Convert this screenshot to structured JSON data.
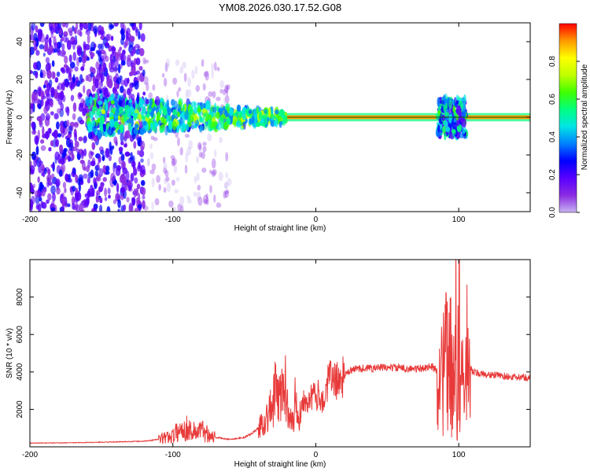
{
  "title": "YM08.2026.030.17.52.G08",
  "colors": {
    "snr_line": "#e83a3a",
    "baseline": "#006400",
    "axes": "#000000",
    "background": "#ffffff"
  },
  "chart_data": [
    {
      "type": "heatmap",
      "name": "spectrogram",
      "xlabel": "Height of straight line (km)",
      "ylabel": "Frequency (Hz)",
      "xlim": [
        -200,
        150
      ],
      "ylim": [
        -50,
        50
      ],
      "xticks": [
        -200,
        -100,
        0,
        100
      ],
      "xtick_labels": [
        "-200",
        "-100",
        "0",
        "100"
      ],
      "yticks": [
        -40,
        -20,
        0,
        20,
        40
      ],
      "ytick_labels": [
        "-40",
        "-20",
        "0",
        "20",
        "40"
      ],
      "colorbar": {
        "label": "Normalized spectral amplitude",
        "range": [
          0.0,
          1.0
        ],
        "ticks": [
          0.0,
          0.2,
          0.4,
          0.6,
          0.8
        ],
        "tick_labels": [
          "0.0",
          "0.2",
          "0.4",
          "0.6",
          "0.8"
        ],
        "colormap": [
          "#c8b4f0",
          "#8a2be2",
          "#5a00ff",
          "#0000ff",
          "#0080ff",
          "#00e5e5",
          "#00ff80",
          "#40ff00",
          "#c0ff00",
          "#ffff00",
          "#ff9900",
          "#ff0000"
        ]
      },
      "features": [
        {
          "label": "scattered noise",
          "x_range": [
            -200,
            -120
          ],
          "freq_range": [
            -50,
            50
          ],
          "amplitude": 0.15
        },
        {
          "label": "sparse faint noise",
          "x_range": [
            -120,
            -60
          ],
          "freq_range": [
            -50,
            30
          ],
          "amplitude": 0.05
        },
        {
          "label": "broadening band",
          "x_range": [
            -160,
            -20
          ],
          "freq_range": [
            -10,
            12
          ],
          "amplitude": 0.3
        },
        {
          "label": "narrow carrier line",
          "x_range": [
            -20,
            150
          ],
          "freq_range": [
            -1,
            1
          ],
          "amplitude": 0.95
        },
        {
          "label": "disturbance near 100 km",
          "x_range": [
            85,
            105
          ],
          "freq_range": [
            -10,
            10
          ],
          "amplitude": 0.35
        }
      ]
    },
    {
      "type": "line",
      "name": "snr",
      "xlabel": "Height of straight line (km)",
      "ylabel": "SNR (10 * v/v)",
      "xlim": [
        -200,
        150
      ],
      "ylim": [
        0,
        10000
      ],
      "xticks": [
        -200,
        -100,
        0,
        100
      ],
      "xtick_labels": [
        "-200",
        "-100",
        "0",
        "100"
      ],
      "yticks": [
        2000,
        4000,
        6000,
        8000
      ],
      "ytick_labels": [
        "2000",
        "4000",
        "6000",
        "8000"
      ],
      "series": [
        {
          "name": "SNR",
          "x": [
            -200,
            -180,
            -160,
            -140,
            -120,
            -110,
            -100,
            -95,
            -90,
            -85,
            -80,
            -75,
            -70,
            -60,
            -50,
            -45,
            -40,
            -35,
            -30,
            -28,
            -26,
            -24,
            -22,
            -20,
            -18,
            -16,
            -14,
            -12,
            -10,
            -8,
            -6,
            -4,
            -2,
            0,
            2,
            4,
            6,
            8,
            10,
            15,
            20,
            25,
            30,
            40,
            50,
            60,
            70,
            75,
            80,
            85,
            88,
            90,
            92,
            94,
            95,
            96,
            97,
            98,
            99,
            100,
            101,
            102,
            103,
            104,
            105,
            106,
            107,
            108,
            110,
            115,
            120,
            130,
            140,
            150
          ],
          "y": [
            200,
            210,
            230,
            260,
            300,
            400,
            600,
            900,
            1000,
            800,
            900,
            700,
            500,
            400,
            500,
            700,
            1000,
            1500,
            2200,
            3100,
            2400,
            2900,
            3400,
            2500,
            2000,
            1200,
            2800,
            1500,
            2200,
            2700,
            2600,
            2400,
            2900,
            2500,
            2800,
            2700,
            2300,
            3300,
            3700,
            3500,
            3800,
            4100,
            4200,
            4200,
            4250,
            4200,
            4150,
            4200,
            4300,
            4100,
            3600,
            4700,
            4200,
            5400,
            3200,
            6300,
            2200,
            6800,
            1200,
            10000,
            1500,
            4000,
            6200,
            1100,
            3300,
            5400,
            2400,
            4200,
            4000,
            3900,
            3850,
            3800,
            3700,
            3700
          ]
        }
      ]
    }
  ]
}
